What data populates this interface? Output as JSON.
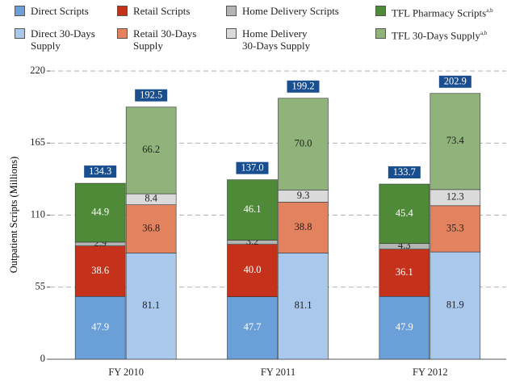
{
  "chart_data": {
    "type": "grouped_stacked_bar",
    "y_label": "Outpatient Scripts (Millions)",
    "categories": [
      "FY 2010",
      "FY 2011",
      "FY 2012"
    ],
    "stacks": [
      "scripts",
      "supply"
    ],
    "ylim": [
      0,
      220
    ],
    "yticks": [
      0,
      55,
      110,
      165,
      220
    ],
    "grid": true,
    "series": [
      {
        "name": "Direct Scripts",
        "stack": "scripts",
        "color": "#6a9fd8",
        "label_color": "#ffffff",
        "values": [
          47.9,
          47.7,
          47.9
        ],
        "value_labels": [
          "47.9",
          "47.7",
          "47.9"
        ]
      },
      {
        "name": "Retail Scripts",
        "stack": "scripts",
        "color": "#c5321c",
        "label_color": "#ffffff",
        "values": [
          38.6,
          40.0,
          36.1
        ],
        "value_labels": [
          "38.6",
          "40.0",
          "36.1"
        ]
      },
      {
        "name": "Home Delivery Scripts",
        "stack": "scripts",
        "color": "#b3b3b3",
        "label_color": "#222222",
        "values": [
          2.9,
          3.2,
          4.3
        ],
        "value_labels": [
          "2.9",
          "3.2",
          "4.3"
        ]
      },
      {
        "name": "TFL Pharmacy Scripts",
        "superscript": "a,b",
        "stack": "scripts",
        "color": "#4f8a38",
        "label_color": "#ffffff",
        "values": [
          44.9,
          46.1,
          45.4
        ],
        "value_labels": [
          "44.9",
          "46.1",
          "45.4"
        ]
      },
      {
        "name": "Direct 30-Days Supply",
        "stack": "supply",
        "color": "#aac8ec",
        "label_color": "#222222",
        "values": [
          81.1,
          81.1,
          81.9
        ],
        "value_labels": [
          "81.1",
          "81.1",
          "81.9"
        ]
      },
      {
        "name": "Retail 30-Days Supply",
        "stack": "supply",
        "color": "#e2825f",
        "label_color": "#222222",
        "values": [
          36.8,
          38.8,
          35.3
        ],
        "value_labels": [
          "36.8",
          "38.8",
          "35.3"
        ]
      },
      {
        "name": "Home Delivery 30-Days Supply",
        "stack": "supply",
        "color": "#dadada",
        "label_color": "#222222",
        "values": [
          8.4,
          9.3,
          12.3
        ],
        "value_labels": [
          "8.4",
          "9.3",
          "12.3"
        ]
      },
      {
        "name": "TFL 30-Days Supply",
        "superscript": "a,b",
        "stack": "supply",
        "color": "#8fb37a",
        "label_color": "#222222",
        "values": [
          66.2,
          70.0,
          73.4
        ],
        "value_labels": [
          "66.2",
          "70.0",
          "73.4"
        ]
      }
    ],
    "totals": [
      {
        "stack": "scripts",
        "color": "#1a4f8f",
        "values": [
          134.3,
          137.0,
          133.7
        ],
        "value_labels": [
          "134.3",
          "137.0",
          "133.7"
        ]
      },
      {
        "stack": "supply",
        "color": "#1a4f8f",
        "values": [
          192.5,
          199.2,
          202.9
        ],
        "value_labels": [
          "192.5",
          "199.2",
          "202.9"
        ]
      }
    ]
  }
}
